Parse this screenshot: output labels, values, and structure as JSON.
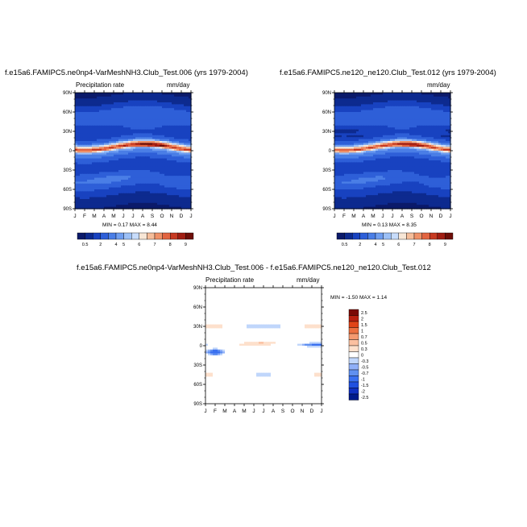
{
  "colors": {
    "prect_scale": [
      "#0b1a6a",
      "#0d2a8f",
      "#1842c0",
      "#2e5fd8",
      "#4a7ee6",
      "#6f9ef0",
      "#9cc0f6",
      "#c7dcfb",
      "#f7e6d6",
      "#f5bd9a",
      "#ef9168",
      "#e26440",
      "#c73a22",
      "#a01d12",
      "#6e0e08"
    ],
    "diff_scale": [
      "#001a8a",
      "#1030c0",
      "#2050e0",
      "#3a70f0",
      "#6090f0",
      "#90b0f8",
      "#c0d6fb",
      "#ffffff",
      "#fde0cc",
      "#fbc0a0",
      "#f49a70",
      "#ec7040",
      "#e04418",
      "#b82010",
      "#7a0a06"
    ]
  },
  "chart_data": [
    {
      "type": "heatmap",
      "title": "f.e15a6.FAMIPC5.ne0np4-VarMeshNH3.Club_Test.006 (yrs 1979-2004)",
      "left_label": "Precipitation rate",
      "right_label": "mm/day",
      "stats": "MIN =  0.17 MAX =  8.44",
      "x_ticks": [
        "J",
        "F",
        "M",
        "A",
        "M",
        "J",
        "J",
        "A",
        "S",
        "O",
        "N",
        "D",
        "J"
      ],
      "y_ticks": [
        "90N",
        "60N",
        "30N",
        "0",
        "30S",
        "60S",
        "90S"
      ],
      "y_values": [
        90,
        60,
        30,
        0,
        -30,
        -60,
        -90
      ],
      "colorbar_labels": [
        "0.5",
        "2",
        "4",
        "5",
        "6",
        "7",
        "8",
        "9"
      ],
      "profile": [
        [
          90,
          0.4
        ],
        [
          75,
          0.8
        ],
        [
          60,
          2.6
        ],
        [
          45,
          2.8
        ],
        [
          35,
          1.6
        ],
        [
          25,
          1.1
        ],
        [
          15,
          3.0
        ],
        [
          8,
          6.5
        ],
        [
          5,
          8.0
        ],
        [
          0,
          4.5
        ],
        [
          -5,
          3.5
        ],
        [
          -10,
          2.6
        ],
        [
          -20,
          1.4
        ],
        [
          -30,
          1.6
        ],
        [
          -45,
          3.0
        ],
        [
          -55,
          2.2
        ],
        [
          -70,
          0.9
        ],
        [
          -90,
          0.4
        ]
      ]
    },
    {
      "type": "heatmap",
      "title": "f.e15a6.FAMIPC5.ne120_ne120.Club_Test.012 (yrs 1979-2004)",
      "left_label": "",
      "right_label": "mm/day",
      "stats": "MIN =  0.13 MAX =  8.35",
      "x_ticks": [
        "J",
        "F",
        "M",
        "A",
        "M",
        "J",
        "J",
        "A",
        "S",
        "O",
        "N",
        "D",
        "J"
      ],
      "y_ticks": [
        "90N",
        "60N",
        "30N",
        "0",
        "30S",
        "60S",
        "90S"
      ],
      "y_values": [
        90,
        60,
        30,
        0,
        -30,
        -60,
        -90
      ],
      "colorbar_labels": [
        "0.5",
        "2",
        "4",
        "5",
        "6",
        "7",
        "8",
        "9"
      ],
      "profile": [
        [
          90,
          0.4
        ],
        [
          75,
          0.8
        ],
        [
          60,
          2.5
        ],
        [
          45,
          2.7
        ],
        [
          35,
          1.5
        ],
        [
          25,
          1.0
        ],
        [
          15,
          2.9
        ],
        [
          8,
          6.3
        ],
        [
          5,
          7.8
        ],
        [
          0,
          4.4
        ],
        [
          -5,
          3.4
        ],
        [
          -10,
          2.5
        ],
        [
          -20,
          1.3
        ],
        [
          -30,
          1.5
        ],
        [
          -45,
          2.9
        ],
        [
          -55,
          2.1
        ],
        [
          -70,
          0.9
        ],
        [
          -90,
          0.4
        ]
      ]
    },
    {
      "type": "heatmap",
      "title": "f.e15a6.FAMIPC5.ne0np4-VarMeshNH3.Club_Test.006 - f.e15a6.FAMIPC5.ne120_ne120.Club_Test.012",
      "left_label": "Precipitation rate",
      "right_label": "mm/day",
      "stats": "MIN = -1.50 MAX =  1.14",
      "x_ticks": [
        "J",
        "F",
        "M",
        "A",
        "M",
        "J",
        "J",
        "A",
        "S",
        "O",
        "N",
        "D",
        "J"
      ],
      "y_ticks": [
        "90N",
        "60N",
        "30N",
        "0",
        "30S",
        "60S",
        "90S"
      ],
      "y_values": [
        90,
        60,
        30,
        0,
        -30,
        -60,
        -90
      ],
      "colorbar_labels": [
        "2.5",
        "2",
        "1.5",
        "1",
        "0.7",
        "0.5",
        "0.3",
        "0",
        "-0.3",
        "-0.5",
        "-0.7",
        "-1",
        "-1.5",
        "-2",
        "-2.5"
      ]
    }
  ]
}
